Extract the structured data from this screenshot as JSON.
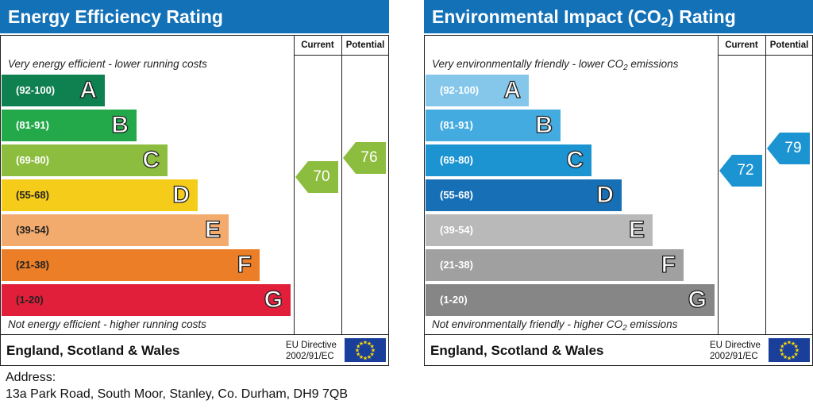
{
  "chart_data": [
    {
      "type": "bar",
      "title": "Energy Efficiency Rating",
      "columns": [
        "Current",
        "Potential"
      ],
      "top_note": "Very energy efficient - lower running costs",
      "bottom_note": "Not energy efficient - higher running costs",
      "categories": [
        "A",
        "B",
        "C",
        "D",
        "E",
        "F",
        "G"
      ],
      "ranges": [
        "(92-100)",
        "(81-91)",
        "(69-80)",
        "(55-68)",
        "(39-54)",
        "(21-38)",
        "(1-20)"
      ],
      "band_colors": [
        "#0f8050",
        "#23a84a",
        "#8dbd3e",
        "#f5cc1a",
        "#f2ab6d",
        "#eb7e26",
        "#e21f3a"
      ],
      "current": 70,
      "potential": 76,
      "current_color": "#8dbd3e",
      "potential_color": "#8dbd3e",
      "footer": "England, Scotland & Wales",
      "eu_directive": [
        "EU Directive",
        "2002/91/EC"
      ]
    },
    {
      "type": "bar",
      "title": "Environmental Impact (CO₂) Rating",
      "columns": [
        "Current",
        "Potential"
      ],
      "top_note": "Very environmentally friendly - lower CO₂ emissions",
      "bottom_note": "Not environmentally friendly - higher CO₂ emissions",
      "categories": [
        "A",
        "B",
        "C",
        "D",
        "E",
        "F",
        "G"
      ],
      "ranges": [
        "(92-100)",
        "(81-91)",
        "(69-80)",
        "(55-68)",
        "(39-54)",
        "(21-38)",
        "(1-20)"
      ],
      "band_colors": [
        "#85c7eb",
        "#43abe0",
        "#1d94d2",
        "#1770b5",
        "#b9b9b9",
        "#a0a0a0",
        "#868686"
      ],
      "current": 72,
      "potential": 79,
      "current_color": "#1d94d2",
      "potential_color": "#1d94d2",
      "footer": "England, Scotland & Wales",
      "eu_directive": [
        "EU Directive",
        "2002/91/EC"
      ]
    }
  ],
  "address": {
    "label": "Address:",
    "value": "13a Park Road, South Moor, Stanley, Co. Durham, DH9 7QB"
  }
}
